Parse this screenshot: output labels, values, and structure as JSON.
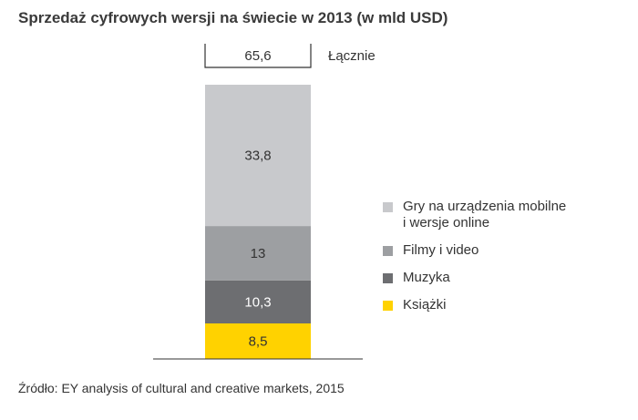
{
  "chart_data": {
    "type": "bar",
    "stacked": true,
    "title": "Sprzedaż cyfrowych wersji na świecie w 2013 (w mld USD)",
    "total_label": "Łącznie",
    "total_value": "65,6",
    "ylim": [
      0,
      65.6
    ],
    "series": [
      {
        "name": "Książki",
        "value": 8.5,
        "value_label": "8,5",
        "color": "#ffd200",
        "text_color": "#333333"
      },
      {
        "name": "Muzyka",
        "value": 10.3,
        "value_label": "10,3",
        "color": "#6d6e71",
        "text_color": "#ffffff"
      },
      {
        "name": "Filmy i video",
        "value": 13,
        "value_label": "13",
        "color": "#9d9fa2",
        "text_color": "#333333"
      },
      {
        "name": "Gry na urządzenia mobilne i wersje online",
        "value": 33.8,
        "value_label": "33,8",
        "color": "#c8c9cc",
        "text_color": "#333333"
      }
    ],
    "legend_placement": "right",
    "grid": false
  },
  "legend": [
    {
      "lines": [
        "Gry na urządzenia mobilne",
        "i wersje online"
      ],
      "color": "#c8c9cc"
    },
    {
      "lines": [
        "Filmy i video"
      ],
      "color": "#9d9fa2"
    },
    {
      "lines": [
        "Muzyka"
      ],
      "color": "#6d6e71"
    },
    {
      "lines": [
        "Książki"
      ],
      "color": "#ffd200"
    }
  ],
  "source": "Źródło: EY analysis of cultural and creative markets, 2015"
}
